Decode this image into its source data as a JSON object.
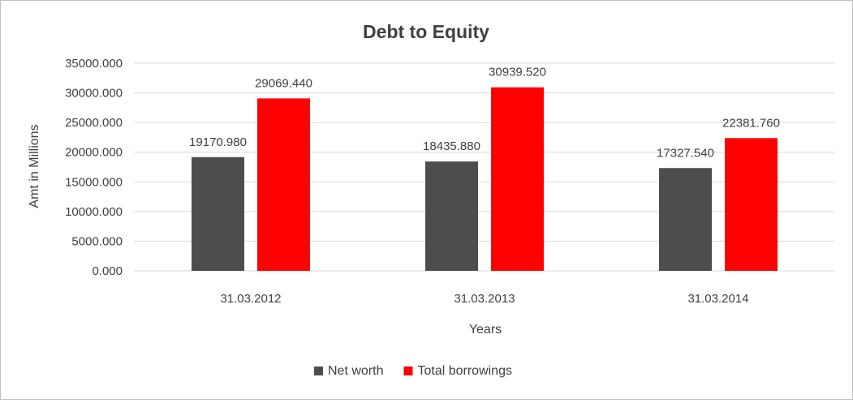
{
  "chart_data": {
    "type": "bar",
    "title": "Debt to Equity",
    "xlabel": "Years",
    "ylabel": "Amt in Millions",
    "categories": [
      "31.03.2012",
      "31.03.2013",
      "31.03.2014"
    ],
    "series": [
      {
        "name": "Net worth",
        "color": "#4d4d4d",
        "values": [
          19170.98,
          18435.88,
          17327.54
        ],
        "labels": [
          "19170.980",
          "18435.880",
          "17327.540"
        ]
      },
      {
        "name": "Total borrowings",
        "color": "#ff0000",
        "values": [
          29069.44,
          30939.52,
          22381.76
        ],
        "labels": [
          "29069.440",
          "30939.520",
          "22381.760"
        ]
      }
    ],
    "ylim": [
      0,
      35000
    ],
    "yticks": [
      0,
      5000,
      10000,
      15000,
      20000,
      25000,
      30000,
      35000
    ],
    "ytick_labels": [
      "0.000",
      "5000.000",
      "10000.000",
      "15000.000",
      "20000.000",
      "25000.000",
      "30000.000",
      "35000.000"
    ],
    "grid": true,
    "gridline_color": "#d9d9d9",
    "legend_position": "bottom"
  }
}
